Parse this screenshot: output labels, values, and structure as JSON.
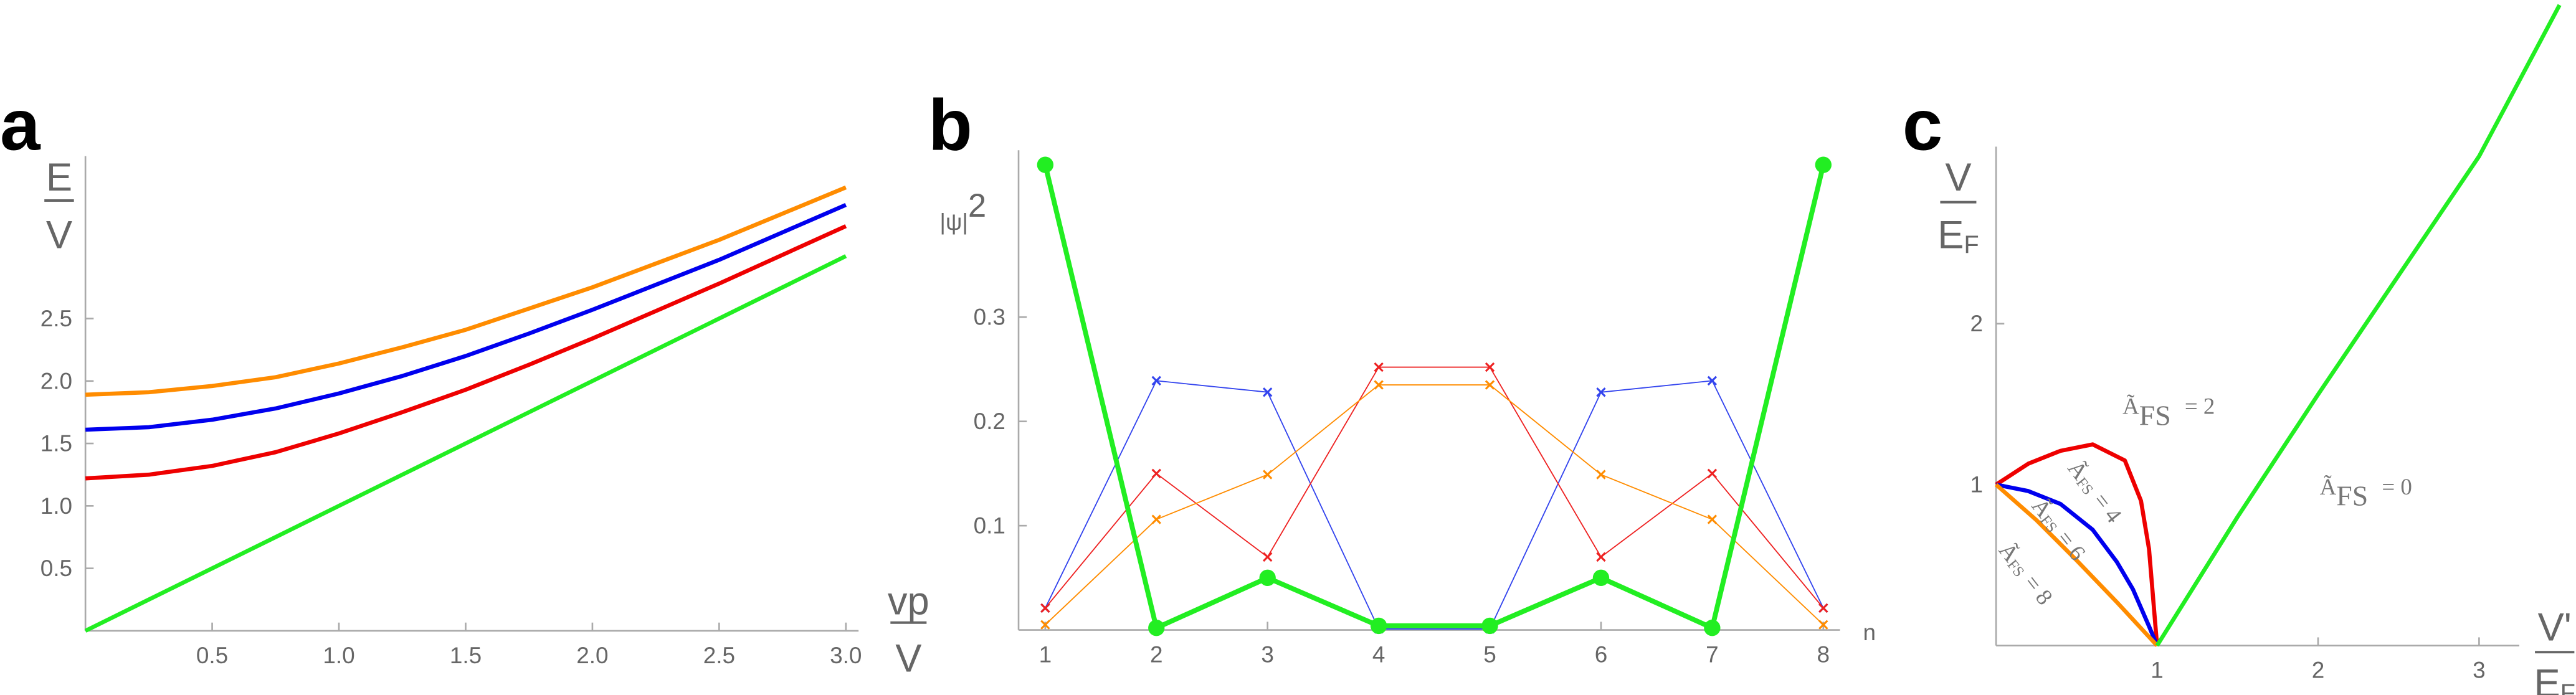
{
  "chart_data": [
    {
      "type": "line",
      "panel_label": "a",
      "x": [
        0,
        0.25,
        0.5,
        0.75,
        1,
        1.25,
        1.5,
        1.75,
        2,
        2.25,
        2.5,
        2.75,
        3
      ],
      "xlim": [
        0,
        3.05
      ],
      "ylim": [
        0,
        3.8
      ],
      "xticks": [
        0.5,
        {
          "value": 1,
          "label": "1.0"
        },
        1.5,
        {
          "value": 2,
          "label": "2.0"
        },
        2.5,
        {
          "value": 3,
          "label": "3.0"
        }
      ],
      "yticks": [
        0.5,
        {
          "value": 1,
          "label": "1.0"
        },
        1.5,
        {
          "value": 2,
          "label": "2.0"
        },
        2.5
      ],
      "x_label": {
        "num": "vp",
        "den": "V"
      },
      "y_label": {
        "num": "E",
        "den": "V"
      },
      "series": [
        {
          "color": "#ff8c00",
          "values": [
            1.89,
            1.91,
            1.96,
            2.03,
            2.14,
            2.27,
            2.41,
            2.58,
            2.75,
            2.94,
            3.13,
            3.34,
            3.55
          ]
        },
        {
          "color": "#0000ee",
          "values": [
            1.61,
            1.63,
            1.69,
            1.78,
            1.9,
            2.04,
            2.2,
            2.38,
            2.57,
            2.77,
            2.97,
            3.19,
            3.41
          ]
        },
        {
          "color": "#ee0000",
          "values": [
            1.22,
            1.25,
            1.32,
            1.43,
            1.58,
            1.75,
            1.93,
            2.13,
            2.34,
            2.56,
            2.78,
            3.01,
            3.24
          ]
        },
        {
          "color": "#22ee22",
          "values": [
            0,
            0.25,
            0.5,
            0.75,
            1,
            1.25,
            1.5,
            1.75,
            2,
            2.25,
            2.5,
            2.75,
            3
          ]
        }
      ]
    },
    {
      "type": "line",
      "panel_label": "b",
      "x": [
        1,
        2,
        3,
        4,
        5,
        6,
        7,
        8
      ],
      "xlim": [
        0.76,
        8.15
      ],
      "ylim": [
        0,
        0.46
      ],
      "xticks": [
        1,
        2,
        3,
        4,
        5,
        6,
        7,
        8
      ],
      "yticks": [
        0.1,
        0.2,
        0.3
      ],
      "x_label": "n",
      "y_label": "|ψ|",
      "y_label_power": "2",
      "series": [
        {
          "color": "#3344ee",
          "marker": "x",
          "values": [
            0.021,
            0.239,
            0.228,
            0.001,
            0.001,
            0.228,
            0.239,
            0.021
          ]
        },
        {
          "color": "#ee2222",
          "marker": "x",
          "values": [
            0.021,
            0.15,
            0.07,
            0.252,
            0.252,
            0.07,
            0.15,
            0.021
          ]
        },
        {
          "color": "#ff8c00",
          "marker": "x",
          "values": [
            0.005,
            0.106,
            0.149,
            0.235,
            0.235,
            0.149,
            0.106,
            0.005
          ]
        },
        {
          "color": "#22ee22",
          "marker": "circle",
          "values": [
            0.446,
            0.002,
            0.05,
            0.004,
            0.004,
            0.05,
            0.002,
            0.446
          ]
        }
      ]
    },
    {
      "type": "line",
      "panel_label": "c",
      "xlim": [
        0,
        3.25
      ],
      "ylim": [
        0,
        3.1
      ],
      "xticks": [
        1,
        2,
        3
      ],
      "yticks": [
        1,
        2
      ],
      "x_label": {
        "num": "V'",
        "den": "E",
        "den_sub": "F"
      },
      "y_label": {
        "num": "V",
        "den": "E",
        "den_sub": "F"
      },
      "series": [
        {
          "color": "#ee0000",
          "x": [
            0,
            0.2,
            0.4,
            0.6,
            0.8,
            0.9,
            0.95,
            1
          ],
          "values": [
            1,
            1.13,
            1.21,
            1.25,
            1.15,
            0.9,
            0.6,
            0
          ]
        },
        {
          "color": "#0000ee",
          "x": [
            0,
            0.2,
            0.4,
            0.6,
            0.75,
            0.85,
            0.95,
            1
          ],
          "values": [
            1,
            0.96,
            0.88,
            0.72,
            0.52,
            0.35,
            0.12,
            0
          ]
        },
        {
          "color": "#ff8c00",
          "x": [
            0,
            0.25,
            0.5,
            0.75,
            1
          ],
          "values": [
            1,
            0.78,
            0.53,
            0.27,
            0
          ]
        },
        {
          "color": "#22ee22",
          "x": [
            1,
            1.5,
            2,
            2.5,
            3,
            3.5
          ],
          "values": [
            0,
            0.8,
            1.56,
            2.3,
            3.04,
            3.98
          ]
        }
      ],
      "annotations": [
        {
          "main": "Ã",
          "sub": "FS",
          "rest": "= 2"
        },
        {
          "main": "Ã",
          "sub": "FS",
          "rest": "= 0"
        },
        {
          "main": "Ã",
          "sub": "FS",
          "rest": "= 4"
        },
        {
          "main": "Ã",
          "sub": "FS",
          "rest": "= 6"
        },
        {
          "main": "Ã",
          "sub": "FS",
          "rest": "= 8"
        }
      ]
    }
  ]
}
